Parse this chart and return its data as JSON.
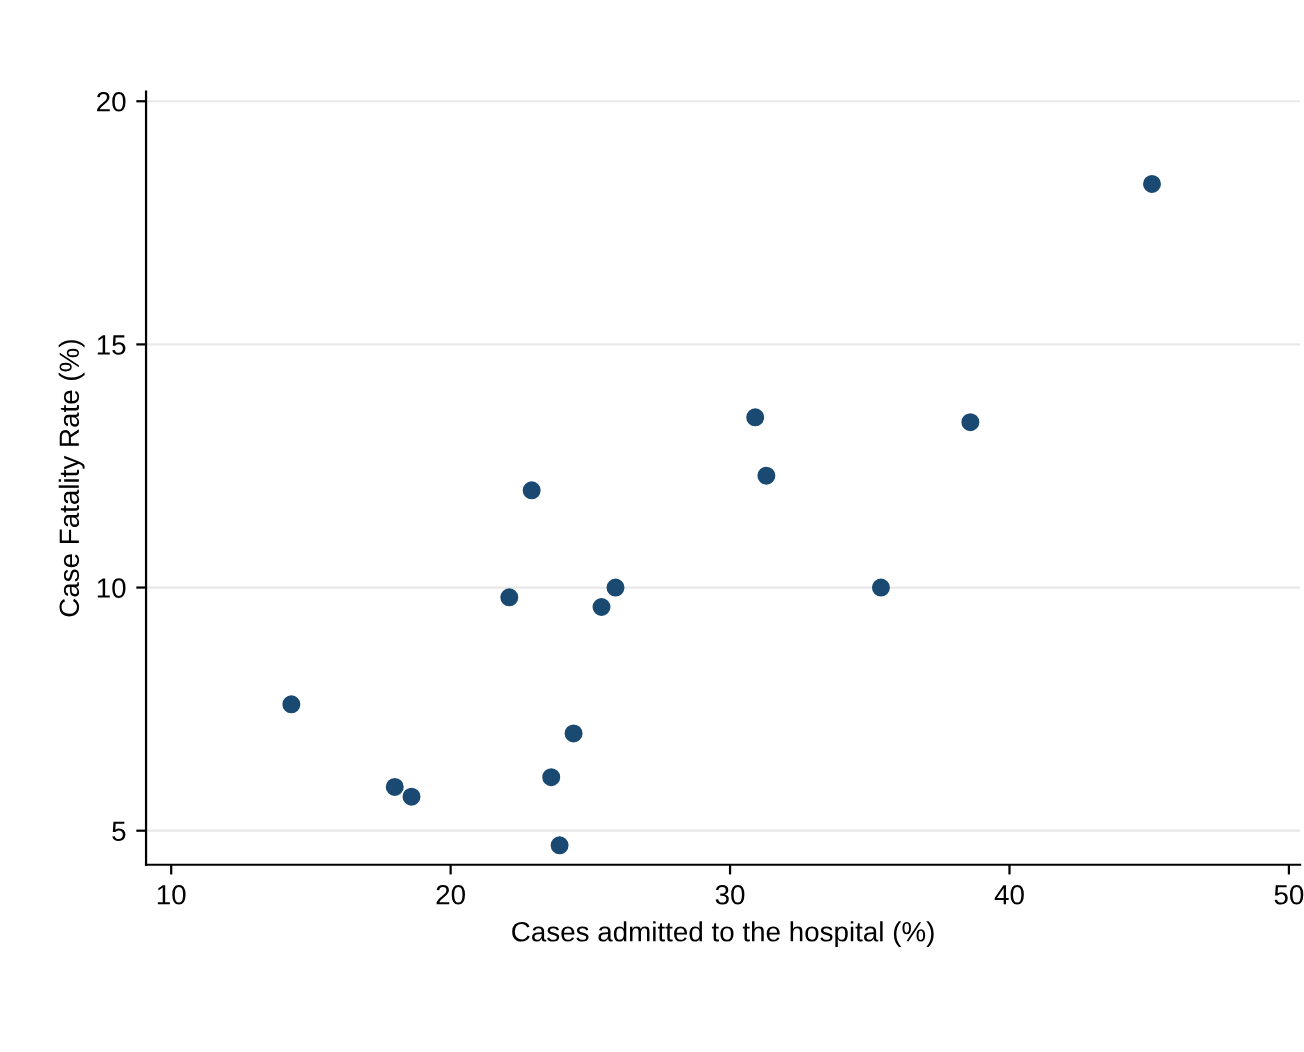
{
  "chart_data": {
    "type": "scatter",
    "xlabel": "Cases admitted to the hospital (%)",
    "ylabel": "Case Fatality Rate (%)",
    "x": [
      14.3,
      18.0,
      18.6,
      22.1,
      22.9,
      23.6,
      23.9,
      24.4,
      25.4,
      25.9,
      30.9,
      31.3,
      35.4,
      38.6,
      45.1
    ],
    "values": [
      7.6,
      5.9,
      5.7,
      9.8,
      12.0,
      6.1,
      4.7,
      7.0,
      9.6,
      10.0,
      13.5,
      12.3,
      10.0,
      13.4,
      18.3
    ],
    "color": "#1a4a72",
    "marker": "circle",
    "xlim": [
      9.1,
      50.4
    ],
    "ylim": [
      4.3,
      20.2
    ],
    "xticks": [
      10,
      20,
      30,
      40,
      50
    ],
    "yticks": [
      5,
      10,
      15,
      20
    ],
    "grid": "y"
  }
}
